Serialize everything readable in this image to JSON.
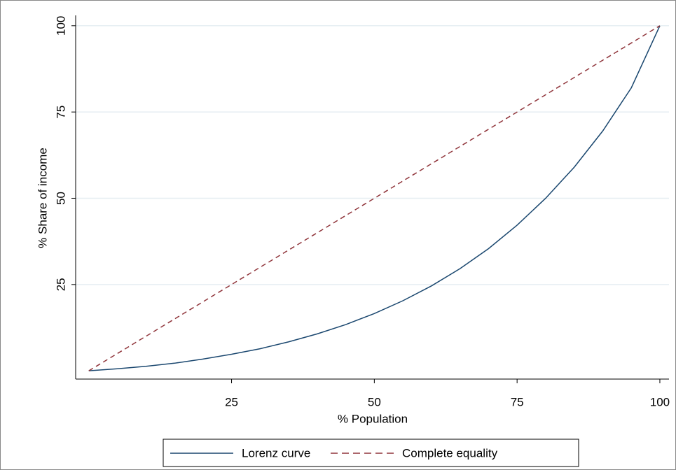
{
  "chart_data": {
    "type": "line",
    "x_label": "% Population",
    "y_label": "% Share of income",
    "xlim": [
      -2.3,
      101.6
    ],
    "ylim": [
      -2.4,
      103
    ],
    "xticks": [
      25,
      50,
      75,
      100
    ],
    "yticks": [
      25,
      50,
      75,
      100
    ],
    "grid": true,
    "legend": "bottom",
    "series": [
      {
        "name": "Lorenz curve",
        "color": "#1a476f",
        "dash": false,
        "x": [
          0,
          5,
          10,
          15,
          20,
          25,
          30,
          35,
          40,
          45,
          50,
          55,
          60,
          65,
          70,
          75,
          80,
          85,
          90,
          95,
          100
        ],
        "values": [
          0,
          0.6,
          1.3,
          2.2,
          3.4,
          4.8,
          6.4,
          8.4,
          10.7,
          13.4,
          16.6,
          20.3,
          24.6,
          29.6,
          35.4,
          42.2,
          50,
          59,
          69.5,
          82,
          100
        ]
      },
      {
        "name": "Complete equality",
        "color": "#90353b",
        "dash": true,
        "x": [
          0,
          100
        ],
        "values": [
          0,
          100
        ]
      }
    ]
  }
}
